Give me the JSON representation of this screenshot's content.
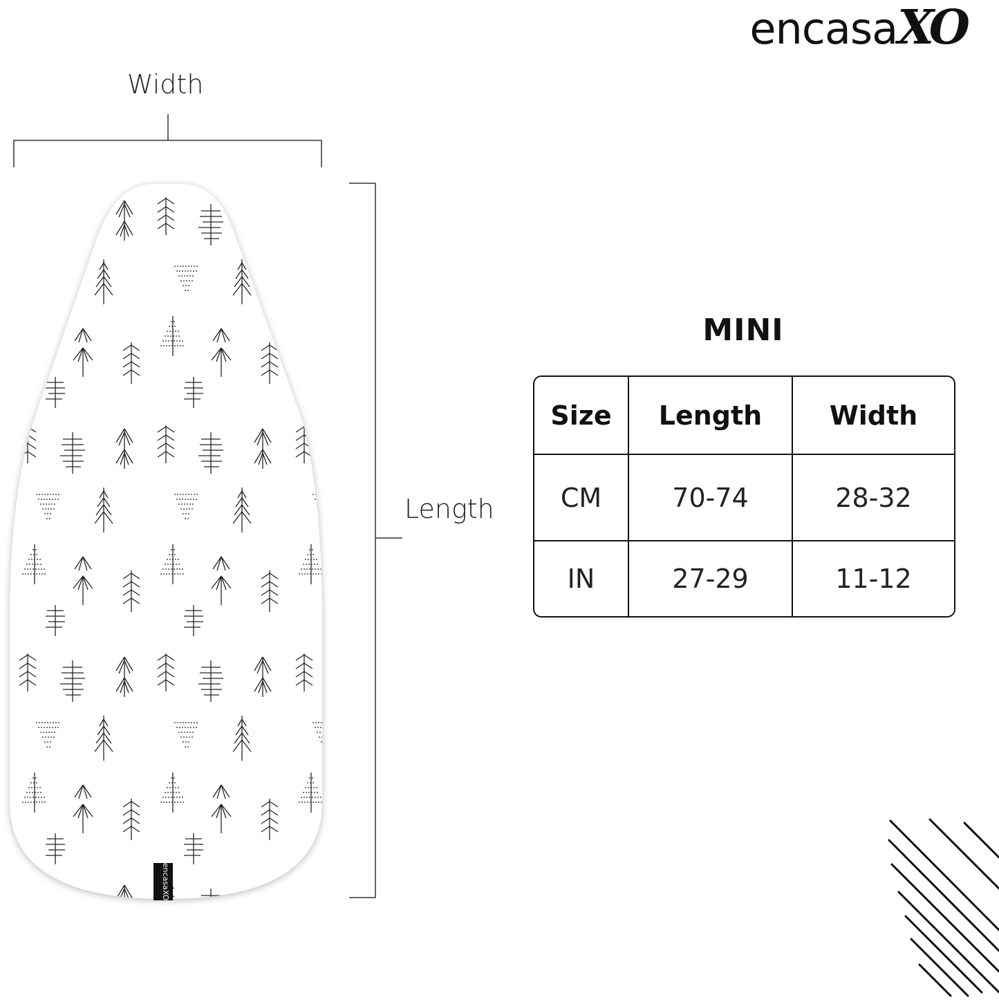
{
  "brand": {
    "logo_text": "encasa",
    "logo_script": "XO",
    "tag_text": "encasaXO"
  },
  "dimensions": {
    "width_label": "Width",
    "length_label": "Length"
  },
  "size_chart": {
    "title": "MINI",
    "headers": [
      "Size",
      "Length",
      "Width"
    ],
    "rows": [
      [
        "CM",
        "70-74",
        "28-32"
      ],
      [
        "IN",
        "27-29",
        "11-12"
      ]
    ]
  },
  "colors": {
    "ink": "#111111",
    "background": "#ffffff",
    "board": "#ffffff"
  }
}
